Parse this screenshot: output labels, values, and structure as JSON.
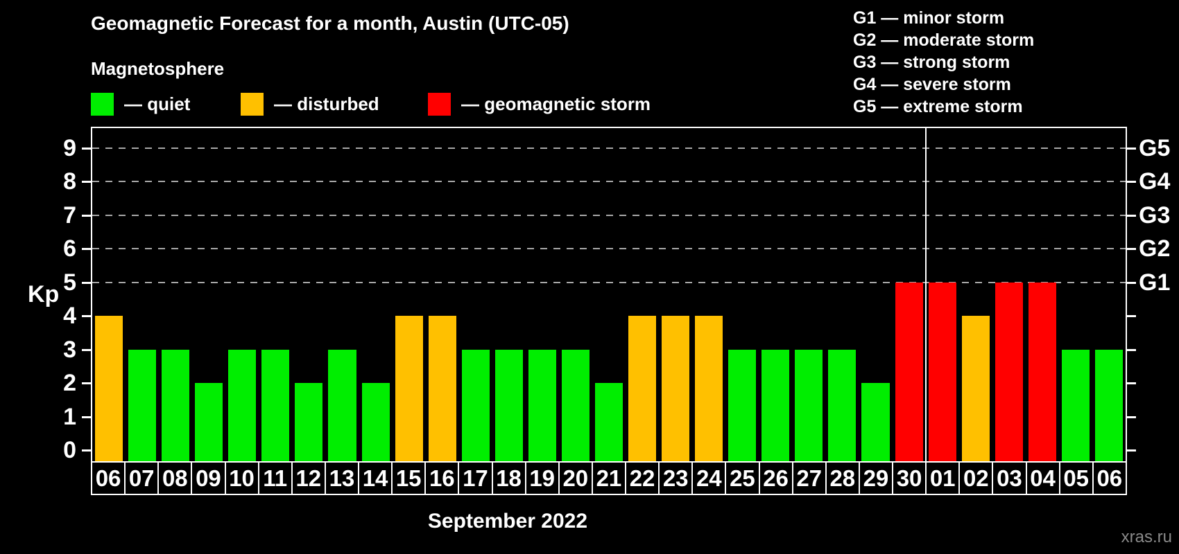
{
  "header": {
    "title": "Geomagnetic Forecast for a month, Austin (UTC-05)",
    "subtitle": "Magnetosphere"
  },
  "legend": {
    "items": [
      {
        "name": "quiet",
        "label": "— quiet",
        "color": "#00ee00"
      },
      {
        "name": "disturbed",
        "label": "— disturbed",
        "color": "#ffc000"
      },
      {
        "name": "storm",
        "label": "— geomagnetic storm",
        "color": "#ff0000"
      }
    ]
  },
  "storm_scale_legend": {
    "items": [
      "G1 — minor storm",
      "G2 — moderate storm",
      "G3 — strong storm",
      "G4 — severe storm",
      "G5 — extreme storm"
    ]
  },
  "watermark": "xras.ru",
  "chart_data": {
    "type": "bar",
    "title": "Geomagnetic Forecast for a month, Austin (UTC-05)",
    "xlabel": "September 2022",
    "ylabel": "Kp",
    "ylim": [
      0,
      9
    ],
    "yticks": [
      0,
      1,
      2,
      3,
      4,
      5,
      6,
      7,
      8,
      9
    ],
    "gridlines_at": [
      5,
      6,
      7,
      8,
      9
    ],
    "grid_style": "dashed",
    "grid_color": "#a8a8a8",
    "axis_color": "#ffffff",
    "right_axis_labels": [
      {
        "label": "G1",
        "kp": 5
      },
      {
        "label": "G2",
        "kp": 6
      },
      {
        "label": "G3",
        "kp": 7
      },
      {
        "label": "G4",
        "kp": 8
      },
      {
        "label": "G5",
        "kp": 9
      }
    ],
    "categories": [
      "06",
      "07",
      "08",
      "09",
      "10",
      "11",
      "12",
      "13",
      "14",
      "15",
      "16",
      "17",
      "18",
      "19",
      "20",
      "21",
      "22",
      "23",
      "24",
      "25",
      "26",
      "27",
      "28",
      "29",
      "30",
      "01",
      "02",
      "03",
      "04",
      "05",
      "06"
    ],
    "values": [
      4,
      3,
      3,
      2,
      3,
      3,
      2,
      3,
      2,
      4,
      4,
      3,
      3,
      3,
      3,
      2,
      4,
      4,
      4,
      3,
      3,
      3,
      3,
      2,
      5,
      5,
      4,
      5,
      5,
      3,
      3
    ],
    "statuses": [
      "disturbed",
      "quiet",
      "quiet",
      "quiet",
      "quiet",
      "quiet",
      "quiet",
      "quiet",
      "quiet",
      "disturbed",
      "disturbed",
      "quiet",
      "quiet",
      "quiet",
      "quiet",
      "quiet",
      "disturbed",
      "disturbed",
      "disturbed",
      "quiet",
      "quiet",
      "quiet",
      "quiet",
      "quiet",
      "storm",
      "storm",
      "disturbed",
      "storm",
      "storm",
      "quiet",
      "quiet"
    ],
    "status_colors": {
      "quiet": "#00ee00",
      "disturbed": "#ffc000",
      "storm": "#ff0000"
    },
    "month_boundary_index": 25
  }
}
